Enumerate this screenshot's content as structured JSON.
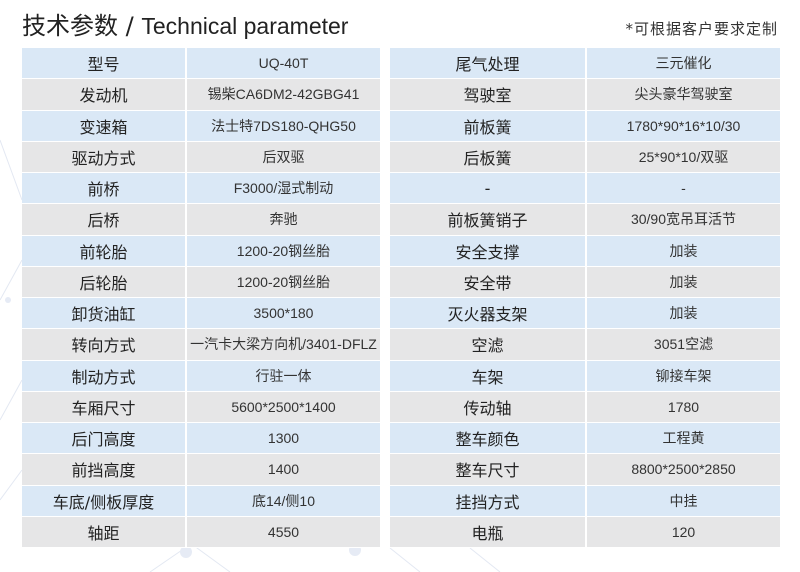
{
  "header": {
    "title_cn": "技术参数 /",
    "title_en": "Technical parameter",
    "note": "*可根据客户要求定制"
  },
  "colors": {
    "row_blue": "#dae8f6",
    "row_grey": "#e6e6e7"
  },
  "left_table": [
    {
      "label": "型号",
      "value": "UQ-40T"
    },
    {
      "label": "发动机",
      "value": "锡柴CA6DM2-42GBG41"
    },
    {
      "label": "变速箱",
      "value": "法士特7DS180-QHG50"
    },
    {
      "label": "驱动方式",
      "value": "后双驱"
    },
    {
      "label": "前桥",
      "value": "F3000/湿式制动"
    },
    {
      "label": "后桥",
      "value": "奔驰"
    },
    {
      "label": "前轮胎",
      "value": "1200-20钢丝胎"
    },
    {
      "label": "后轮胎",
      "value": "1200-20钢丝胎"
    },
    {
      "label": "卸货油缸",
      "value": "3500*180"
    },
    {
      "label": "转向方式",
      "value": "一汽卡大梁方向机/3401-DFLZ"
    },
    {
      "label": "制动方式",
      "value": "行驻一体"
    },
    {
      "label": "车厢尺寸",
      "value": "5600*2500*1400"
    },
    {
      "label": "后门高度",
      "value": "1300"
    },
    {
      "label": "前挡高度",
      "value": "1400"
    },
    {
      "label": "车底/侧板厚度",
      "value": "底14/侧10"
    },
    {
      "label": "轴距",
      "value": "4550"
    }
  ],
  "right_table": [
    {
      "label": "尾气处理",
      "value": "三元催化"
    },
    {
      "label": "驾驶室",
      "value": "尖头豪华驾驶室"
    },
    {
      "label": "前板簧",
      "value": "1780*90*16*10/30"
    },
    {
      "label": "后板簧",
      "value": "25*90*10/双驱"
    },
    {
      "label": "-",
      "value": "-"
    },
    {
      "label": "前板簧销子",
      "value": "30/90宽吊耳活节"
    },
    {
      "label": "安全支撑",
      "value": "加装"
    },
    {
      "label": "安全带",
      "value": "加装"
    },
    {
      "label": "灭火器支架",
      "value": "加装"
    },
    {
      "label": "空滤",
      "value": "3051空滤"
    },
    {
      "label": "车架",
      "value": "铆接车架"
    },
    {
      "label": "传动轴",
      "value": "1780"
    },
    {
      "label": "整车颜色",
      "value": "工程黄"
    },
    {
      "label": "整车尺寸",
      "value": "8800*2500*2850"
    },
    {
      "label": "挂挡方式",
      "value": "中挂"
    },
    {
      "label": "电瓶",
      "value": "120"
    }
  ]
}
